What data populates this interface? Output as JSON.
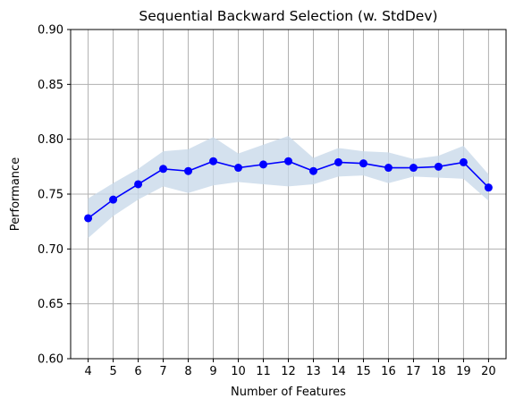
{
  "chart_data": {
    "type": "line",
    "title": "Sequential Backward Selection (w. StdDev)",
    "xlabel": "Number of Features",
    "ylabel": "Performance",
    "x": [
      4,
      5,
      6,
      7,
      8,
      9,
      10,
      11,
      12,
      13,
      14,
      15,
      16,
      17,
      18,
      19,
      20
    ],
    "xlim": [
      3.3,
      20.7
    ],
    "ylim": [
      0.6,
      0.9
    ],
    "yticks": [
      "0.60",
      "0.65",
      "0.70",
      "0.75",
      "0.80",
      "0.85",
      "0.90"
    ],
    "series": [
      {
        "values": [
          0.728,
          0.745,
          0.759,
          0.773,
          0.771,
          0.78,
          0.774,
          0.777,
          0.78,
          0.771,
          0.779,
          0.778,
          0.774,
          0.774,
          0.775,
          0.779,
          0.756
        ],
        "upper": [
          0.746,
          0.76,
          0.773,
          0.789,
          0.791,
          0.802,
          0.787,
          0.795,
          0.803,
          0.783,
          0.792,
          0.789,
          0.788,
          0.782,
          0.785,
          0.794,
          0.768
        ],
        "lower": [
          0.71,
          0.73,
          0.745,
          0.757,
          0.751,
          0.758,
          0.761,
          0.759,
          0.757,
          0.759,
          0.766,
          0.767,
          0.76,
          0.766,
          0.765,
          0.764,
          0.744
        ]
      }
    ],
    "grid": true,
    "colors": {
      "line": "#0000ff",
      "band": "#c9d9ea",
      "grid": "#b0b0b0"
    }
  }
}
